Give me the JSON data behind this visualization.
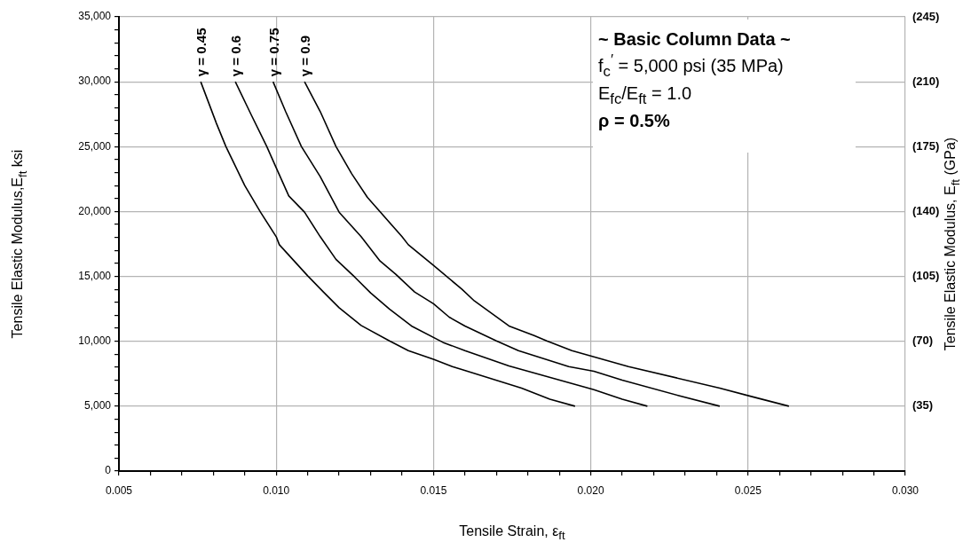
{
  "chart_data": {
    "type": "line",
    "xlabel": "Tensile Strain, ε$_{ft}$",
    "ylabel": "Tensile Elastic Modulus,E$_{ft}$  ksi",
    "y2label": "Tensile Elastic Modulus, E$_{ft}$ (GPa)",
    "annotations": [
      "~ Basic Column Data ~",
      "f$_{c}$$^{′}$ = 5,000 psi (35 MPa)",
      "E$_{fc}$/E$_{ft}$ = 1.0",
      "ρ = 0.5%"
    ],
    "series": [
      {
        "name": "γ = 0.45",
        "color": "#000000",
        "x": [
          0.0076,
          0.0081,
          0.0084,
          0.009,
          0.0095,
          0.01,
          0.0101,
          0.011,
          0.0115,
          0.012,
          0.0127,
          0.0136,
          0.0142,
          0.015,
          0.0156,
          0.0159,
          0.0178,
          0.0187,
          0.0195
        ],
        "values": [
          30000,
          26790,
          25010,
          22000,
          19950,
          18060,
          17440,
          15050,
          13800,
          12590,
          11220,
          10030,
          9280,
          8620,
          8050,
          7830,
          6390,
          5540,
          5000
        ]
      },
      {
        "name": "γ = 0.6",
        "color": "#000000",
        "x": [
          0.0087,
          0.0092,
          0.0097,
          0.01,
          0.0104,
          0.0109,
          0.0114,
          0.0119,
          0.0125,
          0.013,
          0.0136,
          0.0143,
          0.0153,
          0.016,
          0.0174,
          0.0201,
          0.021,
          0.0218
        ],
        "values": [
          30000,
          27480,
          25010,
          23370,
          21200,
          19950,
          18060,
          16310,
          14940,
          13730,
          12480,
          11180,
          9920,
          9280,
          8100,
          6270,
          5540,
          5000
        ]
      },
      {
        "name": "γ = 0.75",
        "color": "#000000",
        "x": [
          0.0099,
          0.0103,
          0.0108,
          0.0114,
          0.012,
          0.0127,
          0.0133,
          0.0138,
          0.0144,
          0.015,
          0.0155,
          0.016,
          0.017,
          0.0177,
          0.0193,
          0.0201,
          0.021,
          0.0228,
          0.0241
        ],
        "values": [
          30000,
          27700,
          25010,
          22690,
          19950,
          18060,
          16190,
          15170,
          13800,
          12890,
          11860,
          11180,
          10030,
          9280,
          8050,
          7690,
          7000,
          5810,
          5000
        ]
      },
      {
        "name": "γ = 0.9",
        "color": "#000000",
        "x": [
          0.0109,
          0.0114,
          0.0119,
          0.0124,
          0.0129,
          0.014,
          0.0142,
          0.015,
          0.0159,
          0.0163,
          0.0174,
          0.0182,
          0.0186,
          0.0194,
          0.0212,
          0.0241,
          0.0251,
          0.0263
        ],
        "values": [
          30000,
          27700,
          25010,
          22910,
          21090,
          18060,
          17440,
          15850,
          14020,
          13110,
          11180,
          10440,
          10030,
          9280,
          8050,
          6390,
          5750,
          5000
        ]
      }
    ],
    "xlim": [
      0.005,
      0.03
    ],
    "xticks": [
      {
        "value": 0.005,
        "label": "0.005"
      },
      {
        "value": 0.006,
        "label": null
      },
      {
        "value": 0.007,
        "label": null
      },
      {
        "value": 0.008,
        "label": null
      },
      {
        "value": 0.009,
        "label": null
      },
      {
        "value": 0.01,
        "label": "0.010"
      },
      {
        "value": 0.011,
        "label": null
      },
      {
        "value": 0.012,
        "label": null
      },
      {
        "value": 0.013,
        "label": null
      },
      {
        "value": 0.014,
        "label": null
      },
      {
        "value": 0.015,
        "label": "0.015"
      },
      {
        "value": 0.016,
        "label": null
      },
      {
        "value": 0.017,
        "label": null
      },
      {
        "value": 0.018,
        "label": null
      },
      {
        "value": 0.019,
        "label": null
      },
      {
        "value": 0.02,
        "label": "0.020"
      },
      {
        "value": 0.021,
        "label": null
      },
      {
        "value": 0.022,
        "label": null
      },
      {
        "value": 0.023,
        "label": null
      },
      {
        "value": 0.024,
        "label": null
      },
      {
        "value": 0.025,
        "label": "0.025"
      },
      {
        "value": 0.026,
        "label": null
      },
      {
        "value": 0.027,
        "label": null
      },
      {
        "value": 0.028,
        "label": null
      },
      {
        "value": 0.029,
        "label": null
      },
      {
        "value": 0.03,
        "label": "0.030"
      }
    ],
    "ylim": [
      0,
      35000
    ],
    "yticks": [
      0,
      {
        "value": 1000,
        "label": null
      },
      {
        "value": 2000,
        "label": null
      },
      {
        "value": 3000,
        "label": null
      },
      {
        "value": 4000,
        "label": null
      },
      {
        "value": 5000,
        "label": "5,000"
      },
      {
        "value": 6000,
        "label": null
      },
      {
        "value": 7000,
        "label": null
      },
      {
        "value": 8000,
        "label": null
      },
      {
        "value": 9000,
        "label": null
      },
      {
        "value": 10000,
        "label": "10,000"
      },
      {
        "value": 11000,
        "label": null
      },
      {
        "value": 12000,
        "label": null
      },
      {
        "value": 13000,
        "label": null
      },
      {
        "value": 14000,
        "label": null
      },
      {
        "value": 15000,
        "label": "15,000"
      },
      {
        "value": 16000,
        "label": null
      },
      {
        "value": 17000,
        "label": null
      },
      {
        "value": 18000,
        "label": null
      },
      {
        "value": 19000,
        "label": null
      },
      {
        "value": 20000,
        "label": "20,000"
      },
      {
        "value": 21000,
        "label": null
      },
      {
        "value": 22000,
        "label": null
      },
      {
        "value": 23000,
        "label": null
      },
      {
        "value": 24000,
        "label": null
      },
      {
        "value": 25000,
        "label": "25,000"
      },
      {
        "value": 26000,
        "label": null
      },
      {
        "value": 27000,
        "label": null
      },
      {
        "value": 28000,
        "label": null
      },
      {
        "value": 29000,
        "label": null
      },
      {
        "value": 30000,
        "label": "30,000"
      },
      {
        "value": 31000,
        "label": null
      },
      {
        "value": 32000,
        "label": null
      },
      {
        "value": 33000,
        "label": null
      },
      {
        "value": 34000,
        "label": null
      },
      {
        "value": 35000,
        "label": "35,000"
      }
    ],
    "y2lim": [
      0,
      245
    ],
    "y2ticks": [
      {
        "value": 35,
        "label": "(35)"
      },
      {
        "value": 70,
        "label": "(70)"
      },
      {
        "value": 105,
        "label": "(105)"
      },
      {
        "value": 140,
        "label": "(140)"
      },
      {
        "value": 175,
        "label": "(175)"
      },
      {
        "value": 210,
        "label": "(210)"
      },
      {
        "value": 245,
        "label": "(245)"
      }
    ],
    "grid": true,
    "legend": false,
    "marker": "none",
    "line_style": "solid"
  }
}
